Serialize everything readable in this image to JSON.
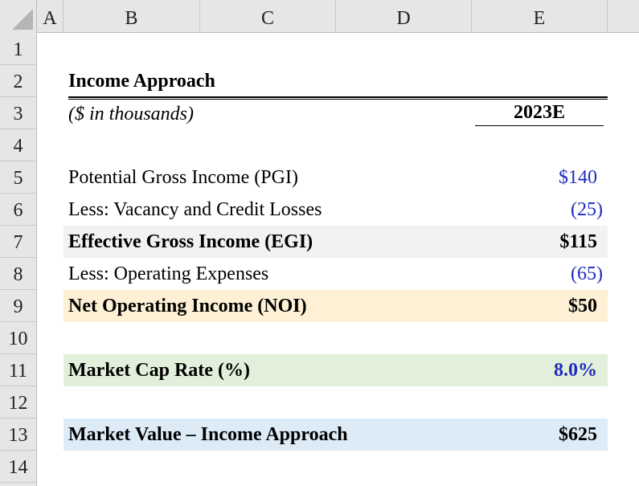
{
  "columns": [
    "A",
    "B",
    "C",
    "D",
    "E"
  ],
  "rows": [
    "1",
    "2",
    "3",
    "4",
    "5",
    "6",
    "7",
    "8",
    "9",
    "10",
    "11",
    "12",
    "13",
    "14"
  ],
  "title": "Income Approach",
  "units": "($ in thousands)",
  "period": "2023E",
  "lines": {
    "pgi": {
      "label": "Potential Gross Income (PGI)",
      "value": "$140"
    },
    "vacancy": {
      "label": "Less: Vacancy and Credit Losses",
      "value": "(25)"
    },
    "egi": {
      "label": "Effective Gross Income (EGI)",
      "value": "$115"
    },
    "opex": {
      "label": "Less: Operating Expenses",
      "value": "(65)"
    },
    "noi": {
      "label": "Net Operating Income (NOI)",
      "value": "$50"
    },
    "cap_rate": {
      "label": "Market Cap Rate (%)",
      "value": "8.0%"
    },
    "market_value": {
      "label": "Market Value – Income Approach",
      "value": "$625"
    }
  },
  "colors": {
    "input_blue": "#1f2bbf",
    "egi_fill": "#f2f2f2",
    "noi_fill": "#fdf0d5",
    "cap_fill": "#e2efda",
    "mv_fill": "#ddebf7",
    "header_gray": "#e6e6e6"
  }
}
